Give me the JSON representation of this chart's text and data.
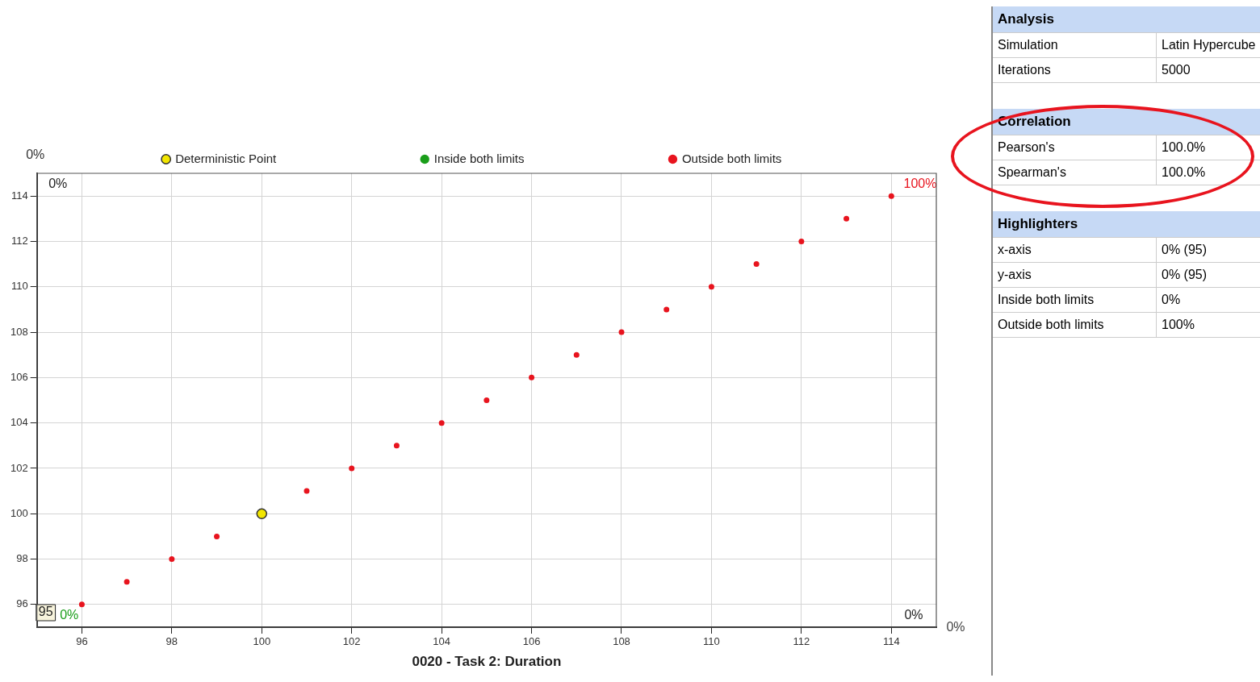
{
  "chart_data": [
    {
      "type": "scatter",
      "xlabel": "0020 - Task 2: Duration",
      "xlim": [
        95,
        115
      ],
      "ylim": [
        95,
        115
      ],
      "xticks": [
        96,
        98,
        100,
        102,
        104,
        106,
        108,
        110,
        112,
        114
      ],
      "yticks": [
        96,
        98,
        100,
        102,
        104,
        106,
        108,
        110,
        112,
        114
      ],
      "grid": true,
      "legend": "top",
      "marker": "circle",
      "series": [
        {
          "name": "Deterministic Point",
          "color": "#f2e600",
          "x": [
            100
          ],
          "values": [
            100
          ]
        },
        {
          "name": "Inside both limits",
          "color": "#1a9e1a"
        },
        {
          "name": "Outside both limits",
          "color": "#e8141e",
          "x": [
            96,
            97,
            98,
            99,
            101,
            102,
            103,
            104,
            105,
            106,
            107,
            108,
            109,
            110,
            111,
            112,
            113,
            114
          ],
          "values": [
            96,
            97,
            98,
            99,
            101,
            102,
            103,
            104,
            105,
            106,
            107,
            108,
            109,
            110,
            111,
            112,
            113,
            114
          ]
        }
      ],
      "annotations": [
        "0%",
        "0%",
        "100%",
        "0%",
        "0%",
        "95",
        "0%"
      ]
    },
    {
      "type": "other",
      "categories": [
        "Analysis",
        "Simulation",
        "Iterations",
        "Correlation",
        "Pearson's",
        "Spearman's",
        "Highlighters",
        "x-axis",
        "y-axis",
        "Inside both limits",
        "Outside both limits"
      ],
      "value_labels": [
        null,
        "Latin Hypercube",
        "5000",
        null,
        "100.0%",
        "100.0%",
        null,
        "0% (95)",
        "0% (95)",
        "0%",
        "100%"
      ]
    }
  ]
}
